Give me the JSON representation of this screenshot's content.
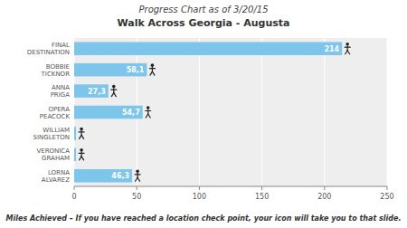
{
  "chart_data": {
    "type": "bar",
    "orientation": "horizontal",
    "title": "Progress Chart as of 3/20/15",
    "subtitle": "Walk Across Georgia - Augusta",
    "xlabel": "Miles Achieved – If you have reached a location check point, your icon will take you to that slide.",
    "categories": [
      "FINAL\nDESTINATION",
      "BOBBIE\nTICKNOR",
      "ANNA\nPRIGA",
      "OPERA\nPEACOCK",
      "WILLIAM\nSINGLETON",
      "VERONICA\nGRAHAM",
      "LORNA\nALVAREZ"
    ],
    "values": [
      214,
      58.1,
      27.3,
      54.7,
      1.5,
      1.5,
      46.3
    ],
    "value_labels": [
      "214",
      "58,1",
      "27,3",
      "54,7",
      null,
      null,
      "46,3"
    ],
    "data_labels": true,
    "color": "#7DC5EA",
    "marker": "person",
    "xlim": [
      0,
      250
    ],
    "xticks": [
      0,
      50,
      100,
      150,
      200,
      250
    ],
    "grid": true
  }
}
